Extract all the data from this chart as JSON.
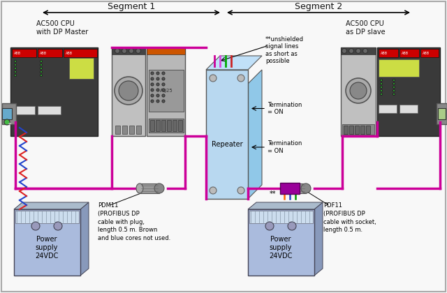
{
  "bg_color": "#f8f8f8",
  "border_color": "#aaaaaa",
  "segment1_label": "Segment 1",
  "segment2_label": "Segment 2",
  "label_ac500_master": "AC500 CPU\nwith DP Master",
  "label_ac500_slave": "AC500 CPU\nas DP slave",
  "label_repeater": "Repeater",
  "label_termination1": "Termination\n= ON",
  "label_termination2": "Termination\n= ON",
  "label_unshielded": "**unshielded\nsignal lines\nas short as\npossible",
  "label_pdm11": "PDM11\n(PROFIBUS DP\ncable with plug,\nlength 0.5 m. Brown\nand blue cores not used.",
  "label_pdf11": "PDF11\n(PROFIBUS DP\ncable with socket,\nlength 0.5 m.",
  "label_power1": "Power\nsupply\n24VDC",
  "label_power2": "Power\nsupply\n24VDC",
  "label_doublestar": "**",
  "magenta": "#cc0099",
  "red": "#dd2222",
  "blue_wire": "#2244cc",
  "green_wire": "#009900",
  "orange_wire": "#ff6600",
  "repeater_color": "#b8d8f0",
  "device_gray": "#888888",
  "power_supply_color": "#aabbdd",
  "abb_red": "#cc0000",
  "text_color": "#111111",
  "dark_gray": "#444444",
  "mid_gray": "#888888",
  "light_gray": "#cccccc",
  "connector_gray": "#888888",
  "font_size_segment": 9,
  "font_size_device": 6.5,
  "font_size_annotation": 6,
  "font_size_label": 7
}
